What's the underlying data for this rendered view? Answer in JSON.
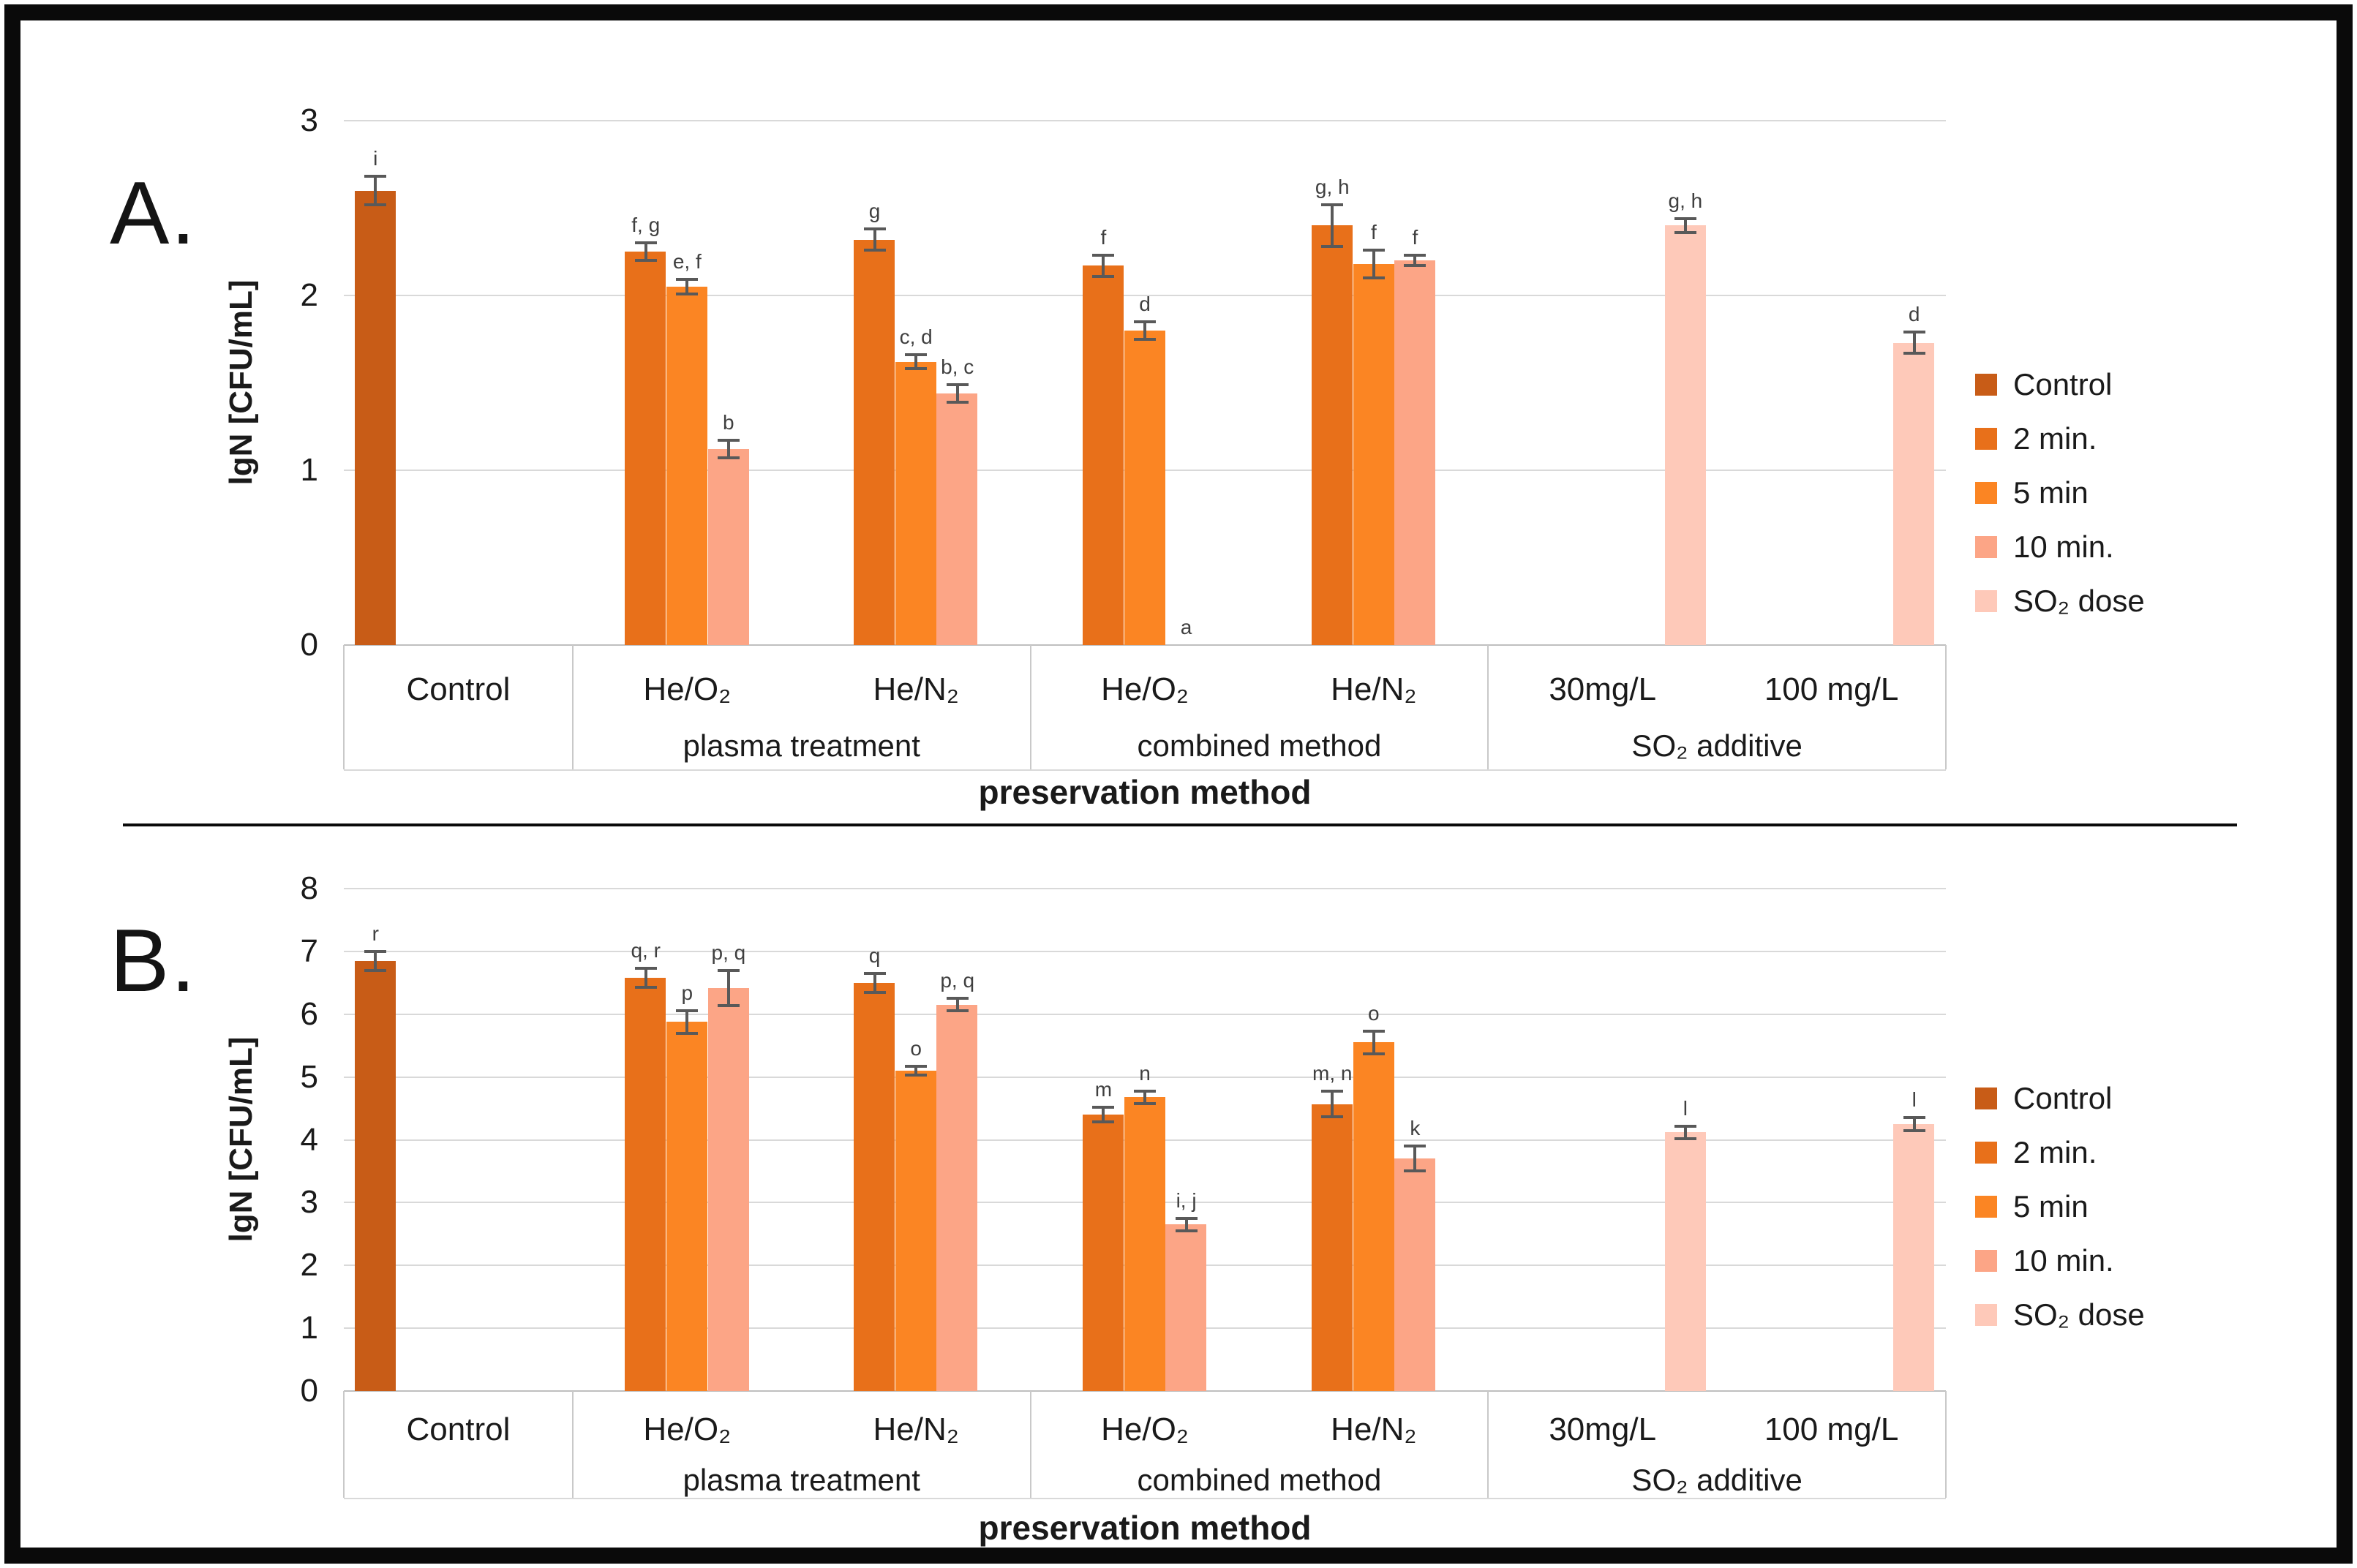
{
  "figure": {
    "panel_a_label": "A.",
    "panel_b_label": "B."
  },
  "legend": {
    "items": [
      {
        "label": "Control",
        "color": "#C85C17"
      },
      {
        "label": "2 min.",
        "color": "#E8701A"
      },
      {
        "label": "5 min",
        "color": "#FB8523"
      },
      {
        "label": "10 min.",
        "color": "#FCA586"
      },
      {
        "label": "SO₂ dose",
        "color": "#FEC9B9"
      }
    ]
  },
  "colors": {
    "gridline": "#D9D9D9",
    "axis_line": "#BFBFBF",
    "band_line": "#C9C9C9",
    "error_bar": "#595959",
    "letter": "#3F3F3F",
    "frame": "#0A0A0A"
  },
  "chart_data": [
    {
      "type": "bar",
      "panel_label": "A.",
      "ylabel": "lgN [CFU/mL]",
      "xlabel": "preservation method",
      "ylim": [
        0,
        3
      ],
      "yticks": [
        0,
        1,
        2,
        3
      ],
      "grid": true,
      "legend_position": "right",
      "series": [
        "Control",
        "2 min.",
        "5 min",
        "10 min.",
        "SO₂ dose"
      ],
      "zones": [
        {
          "label": "",
          "categories": [
            {
              "label": "Control",
              "bars": [
                {
                  "series": 0,
                  "value": 2.6,
                  "error": 0.08,
                  "letter": "i"
                }
              ]
            }
          ]
        },
        {
          "label": "plasma treatment",
          "categories": [
            {
              "label": "He/O₂",
              "bars": [
                {
                  "series": 1,
                  "value": 2.25,
                  "error": 0.05,
                  "letter": "f, g"
                },
                {
                  "series": 2,
                  "value": 2.05,
                  "error": 0.04,
                  "letter": "e, f"
                },
                {
                  "series": 3,
                  "value": 1.12,
                  "error": 0.05,
                  "letter": "b"
                }
              ]
            },
            {
              "label": "He/N₂",
              "bars": [
                {
                  "series": 1,
                  "value": 2.32,
                  "error": 0.06,
                  "letter": "g"
                },
                {
                  "series": 2,
                  "value": 1.62,
                  "error": 0.04,
                  "letter": "c, d"
                },
                {
                  "series": 3,
                  "value": 1.44,
                  "error": 0.05,
                  "letter": "b, c"
                }
              ]
            }
          ]
        },
        {
          "label": "combined method",
          "categories": [
            {
              "label": "He/O₂",
              "bars": [
                {
                  "series": 1,
                  "value": 2.17,
                  "error": 0.06,
                  "letter": "f"
                },
                {
                  "series": 2,
                  "value": 1.8,
                  "error": 0.05,
                  "letter": "d"
                },
                {
                  "series": 3,
                  "value": 0,
                  "error": 0,
                  "letter": "a"
                }
              ]
            },
            {
              "label": "He/N₂",
              "bars": [
                {
                  "series": 1,
                  "value": 2.4,
                  "error": 0.12,
                  "letter": "g, h"
                },
                {
                  "series": 2,
                  "value": 2.18,
                  "error": 0.08,
                  "letter": "f"
                },
                {
                  "series": 3,
                  "value": 2.2,
                  "error": 0.03,
                  "letter": "f"
                }
              ]
            }
          ]
        },
        {
          "label": "SO₂ additive",
          "categories": [
            {
              "label": "30mg/L",
              "bars": [
                {
                  "series": 4,
                  "value": 2.4,
                  "error": 0.04,
                  "letter": "g, h"
                }
              ]
            },
            {
              "label": "100 mg/L",
              "bars": [
                {
                  "series": 4,
                  "value": 1.73,
                  "error": 0.06,
                  "letter": "d"
                }
              ]
            }
          ]
        }
      ]
    },
    {
      "type": "bar",
      "panel_label": "B.",
      "ylabel": "lgN [CFU/mL]",
      "xlabel": "preservation method",
      "ylim": [
        0,
        8
      ],
      "yticks": [
        0,
        1,
        2,
        3,
        4,
        5,
        6,
        7,
        8
      ],
      "grid": true,
      "legend_position": "right",
      "series": [
        "Control",
        "2 min.",
        "5 min",
        "10 min.",
        "SO₂ dose"
      ],
      "zones": [
        {
          "label": "",
          "categories": [
            {
              "label": "Control",
              "bars": [
                {
                  "series": 0,
                  "value": 6.85,
                  "error": 0.15,
                  "letter": "r"
                }
              ]
            }
          ]
        },
        {
          "label": "plasma treatment",
          "categories": [
            {
              "label": "He/O₂",
              "bars": [
                {
                  "series": 1,
                  "value": 6.58,
                  "error": 0.15,
                  "letter": "q, r"
                },
                {
                  "series": 2,
                  "value": 5.88,
                  "error": 0.18,
                  "letter": "p"
                },
                {
                  "series": 3,
                  "value": 6.42,
                  "error": 0.28,
                  "letter": "p, q"
                }
              ]
            },
            {
              "label": "He/N₂",
              "bars": [
                {
                  "series": 1,
                  "value": 6.5,
                  "error": 0.15,
                  "letter": "q"
                },
                {
                  "series": 2,
                  "value": 5.1,
                  "error": 0.07,
                  "letter": "o"
                },
                {
                  "series": 3,
                  "value": 6.15,
                  "error": 0.1,
                  "letter": "p, q"
                }
              ]
            }
          ]
        },
        {
          "label": "combined method",
          "categories": [
            {
              "label": "He/O₂",
              "bars": [
                {
                  "series": 1,
                  "value": 4.4,
                  "error": 0.12,
                  "letter": "m"
                },
                {
                  "series": 2,
                  "value": 4.68,
                  "error": 0.1,
                  "letter": "n"
                },
                {
                  "series": 3,
                  "value": 2.65,
                  "error": 0.1,
                  "letter": "i, j"
                }
              ]
            },
            {
              "label": "He/N₂",
              "bars": [
                {
                  "series": 1,
                  "value": 4.57,
                  "error": 0.2,
                  "letter": "m, n"
                },
                {
                  "series": 2,
                  "value": 5.55,
                  "error": 0.18,
                  "letter": "o"
                },
                {
                  "series": 3,
                  "value": 3.7,
                  "error": 0.2,
                  "letter": "k"
                }
              ]
            }
          ]
        },
        {
          "label": "SO₂ additive",
          "categories": [
            {
              "label": "30mg/L",
              "bars": [
                {
                  "series": 4,
                  "value": 4.12,
                  "error": 0.1,
                  "letter": "l"
                }
              ]
            },
            {
              "label": "100 mg/L",
              "bars": [
                {
                  "series": 4,
                  "value": 4.25,
                  "error": 0.1,
                  "letter": "l"
                }
              ]
            }
          ]
        }
      ]
    }
  ]
}
